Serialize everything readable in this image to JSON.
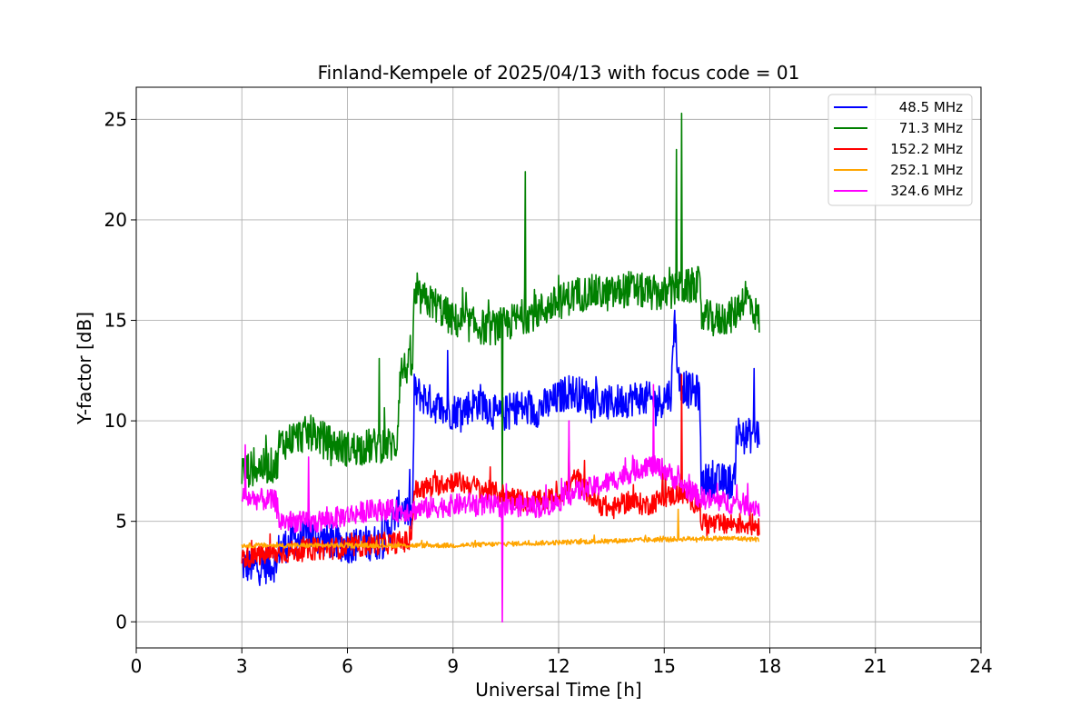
{
  "chart_data": {
    "type": "line",
    "title": "Finland-Kempele of 2025/04/13 with focus code = 01",
    "xlabel": "Universal Time [h]",
    "ylabel": "Y-factor [dB]",
    "xlim": [
      0,
      24
    ],
    "ylim": [
      -1.3,
      26.6
    ],
    "xticks": [
      0,
      3,
      6,
      9,
      12,
      15,
      18,
      21,
      24
    ],
    "yticks": [
      0,
      5,
      10,
      15,
      20,
      25
    ],
    "grid": true,
    "legend_position": "top-right",
    "series": [
      {
        "name": "48.5 MHz",
        "color": "#0000ff",
        "points": [
          [
            3.0,
            2.8
          ],
          [
            3.5,
            2.7
          ],
          [
            4.0,
            2.9
          ],
          [
            4.05,
            3.6
          ],
          [
            4.5,
            4.1
          ],
          [
            5.0,
            4.3
          ],
          [
            5.5,
            4.0
          ],
          [
            6.0,
            3.8
          ],
          [
            7.0,
            4.0
          ],
          [
            7.5,
            5.8
          ],
          [
            7.85,
            5.2
          ],
          [
            7.9,
            11.5
          ],
          [
            8.3,
            11.0
          ],
          [
            8.8,
            10.4
          ],
          [
            9.3,
            10.6
          ],
          [
            9.8,
            11.0
          ],
          [
            10.3,
            10.2
          ],
          [
            10.8,
            10.7
          ],
          [
            11.3,
            10.5
          ],
          [
            11.8,
            10.9
          ],
          [
            12.3,
            11.5
          ],
          [
            12.8,
            11.2
          ],
          [
            13.3,
            10.8
          ],
          [
            13.8,
            11.0
          ],
          [
            14.3,
            11.2
          ],
          [
            14.8,
            10.9
          ],
          [
            15.2,
            11.4
          ],
          [
            15.3,
            15.2
          ],
          [
            15.4,
            12.0
          ],
          [
            15.7,
            11.5
          ],
          [
            16.0,
            11.4
          ],
          [
            16.05,
            7.0
          ],
          [
            16.5,
            7.0
          ],
          [
            17.0,
            7.0
          ],
          [
            17.05,
            9.5
          ],
          [
            17.3,
            9.2
          ],
          [
            17.7,
            9.4
          ]
        ],
        "spikes": [
          [
            8.85,
            13.5
          ],
          [
            15.3,
            15.5
          ],
          [
            17.55,
            12.6
          ]
        ]
      },
      {
        "name": "71.3 MHz",
        "color": "#008000",
        "points": [
          [
            3.0,
            7.5
          ],
          [
            3.5,
            7.7
          ],
          [
            4.0,
            7.8
          ],
          [
            4.05,
            8.8
          ],
          [
            4.5,
            9.2
          ],
          [
            5.0,
            9.4
          ],
          [
            5.5,
            8.9
          ],
          [
            6.0,
            8.6
          ],
          [
            6.5,
            8.7
          ],
          [
            7.0,
            8.8
          ],
          [
            7.4,
            8.8
          ],
          [
            7.5,
            12.5
          ],
          [
            7.85,
            12.8
          ],
          [
            7.9,
            16.2
          ],
          [
            8.5,
            15.8
          ],
          [
            9.0,
            15.0
          ],
          [
            9.5,
            14.8
          ],
          [
            10.0,
            14.6
          ],
          [
            10.5,
            14.8
          ],
          [
            11.0,
            15.2
          ],
          [
            11.5,
            15.5
          ],
          [
            12.0,
            15.9
          ],
          [
            12.5,
            16.3
          ],
          [
            13.0,
            16.4
          ],
          [
            13.5,
            16.3
          ],
          [
            14.0,
            16.6
          ],
          [
            14.5,
            16.4
          ],
          [
            15.0,
            16.3
          ],
          [
            15.5,
            16.6
          ],
          [
            16.0,
            16.8
          ],
          [
            16.05,
            15.2
          ],
          [
            16.5,
            15.0
          ],
          [
            17.0,
            15.3
          ],
          [
            17.3,
            16.3
          ],
          [
            17.7,
            15.0
          ]
        ],
        "spikes": [
          [
            6.9,
            13.1
          ],
          [
            11.05,
            22.4
          ],
          [
            15.35,
            23.5
          ],
          [
            15.5,
            25.3
          ],
          [
            10.4,
            5.2
          ]
        ]
      },
      {
        "name": "152.2 MHz",
        "color": "#ff0000",
        "points": [
          [
            3.0,
            3.2
          ],
          [
            3.5,
            3.3
          ],
          [
            4.0,
            3.4
          ],
          [
            5.0,
            3.6
          ],
          [
            6.0,
            3.7
          ],
          [
            7.0,
            3.9
          ],
          [
            7.8,
            4.0
          ],
          [
            7.9,
            6.5
          ],
          [
            8.5,
            6.8
          ],
          [
            9.0,
            7.0
          ],
          [
            9.5,
            6.8
          ],
          [
            10.0,
            6.5
          ],
          [
            10.5,
            6.3
          ],
          [
            11.0,
            6.0
          ],
          [
            11.5,
            6.0
          ],
          [
            12.0,
            6.2
          ],
          [
            12.5,
            7.2
          ],
          [
            13.0,
            6.0
          ],
          [
            13.5,
            5.6
          ],
          [
            14.0,
            6.0
          ],
          [
            14.5,
            5.8
          ],
          [
            15.0,
            6.2
          ],
          [
            15.5,
            6.4
          ],
          [
            16.0,
            5.8
          ],
          [
            16.05,
            5.0
          ],
          [
            16.5,
            4.8
          ],
          [
            17.0,
            4.9
          ],
          [
            17.7,
            4.8
          ]
        ],
        "spikes": [
          [
            15.5,
            12.3
          ],
          [
            12.3,
            9.0
          ]
        ]
      },
      {
        "name": "252.1 MHz",
        "color": "#ffa500",
        "points": [
          [
            3.0,
            3.8
          ],
          [
            4.0,
            3.8
          ],
          [
            5.0,
            3.8
          ],
          [
            6.0,
            3.8
          ],
          [
            7.0,
            3.8
          ],
          [
            8.0,
            3.8
          ],
          [
            9.0,
            3.8
          ],
          [
            10.0,
            3.85
          ],
          [
            11.0,
            3.9
          ],
          [
            12.0,
            3.95
          ],
          [
            13.0,
            4.0
          ],
          [
            14.0,
            4.05
          ],
          [
            15.0,
            4.1
          ],
          [
            16.0,
            4.15
          ],
          [
            17.0,
            4.15
          ],
          [
            17.7,
            4.1
          ]
        ],
        "spikes": [
          [
            15.4,
            5.6
          ]
        ]
      },
      {
        "name": "324.6 MHz",
        "color": "#ff00ff",
        "points": [
          [
            3.0,
            6.2
          ],
          [
            3.5,
            6.1
          ],
          [
            4.0,
            6.0
          ],
          [
            4.05,
            5.0
          ],
          [
            4.5,
            5.0
          ],
          [
            5.0,
            4.9
          ],
          [
            5.5,
            5.1
          ],
          [
            6.0,
            5.3
          ],
          [
            6.5,
            5.5
          ],
          [
            7.0,
            5.6
          ],
          [
            7.5,
            5.5
          ],
          [
            8.0,
            5.6
          ],
          [
            8.5,
            5.7
          ],
          [
            9.0,
            5.8
          ],
          [
            9.5,
            5.9
          ],
          [
            10.0,
            5.8
          ],
          [
            10.5,
            5.7
          ],
          [
            11.0,
            5.8
          ],
          [
            11.5,
            5.7
          ],
          [
            12.0,
            6.0
          ],
          [
            12.5,
            6.5
          ],
          [
            13.0,
            6.7
          ],
          [
            13.5,
            7.0
          ],
          [
            14.0,
            7.4
          ],
          [
            14.5,
            7.8
          ],
          [
            15.0,
            7.6
          ],
          [
            15.5,
            6.8
          ],
          [
            16.0,
            6.2
          ],
          [
            16.5,
            6.0
          ],
          [
            17.0,
            5.9
          ],
          [
            17.5,
            5.8
          ],
          [
            17.7,
            5.7
          ]
        ],
        "spikes": [
          [
            3.1,
            8.8
          ],
          [
            4.9,
            8.2
          ],
          [
            14.7,
            11.8
          ],
          [
            12.3,
            10.0
          ],
          [
            10.4,
            0.0
          ]
        ]
      }
    ]
  }
}
